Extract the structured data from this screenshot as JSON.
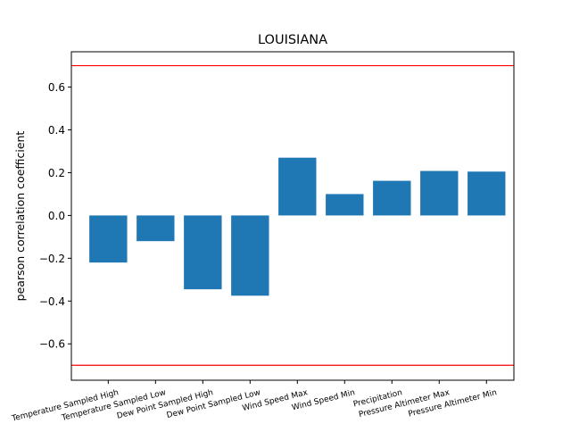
{
  "chart_data": {
    "type": "bar",
    "title": "LOUISIANA",
    "xlabel": "",
    "ylabel": "pearson correlation coefficient",
    "categories": [
      "Temperature Sampled High",
      "Temperature Sampled Low",
      "Dew Point Sampled High",
      "Dew Point Sampled Low",
      "Wind Speed Max",
      "Wind Speed Min",
      "Precipitation",
      "Pressure Altimeter Max",
      "Pressure Altimeter Min"
    ],
    "values": [
      -0.22,
      -0.12,
      -0.345,
      -0.375,
      0.27,
      0.1,
      0.162,
      0.208,
      0.205
    ],
    "yticks": [
      -0.6,
      -0.4,
      -0.2,
      0.0,
      0.2,
      0.4,
      0.6
    ],
    "ytick_labels": [
      "−0.6",
      "−0.4",
      "−0.2",
      "0.0",
      "0.2",
      "0.4",
      "0.6"
    ],
    "ylim": [
      -0.77,
      0.765
    ],
    "reference_lines": [
      0.7,
      -0.7
    ],
    "grid": false,
    "colors": {
      "bar": "#1f77b4",
      "reference_line": "#ff0000",
      "axis": "#000000"
    }
  }
}
